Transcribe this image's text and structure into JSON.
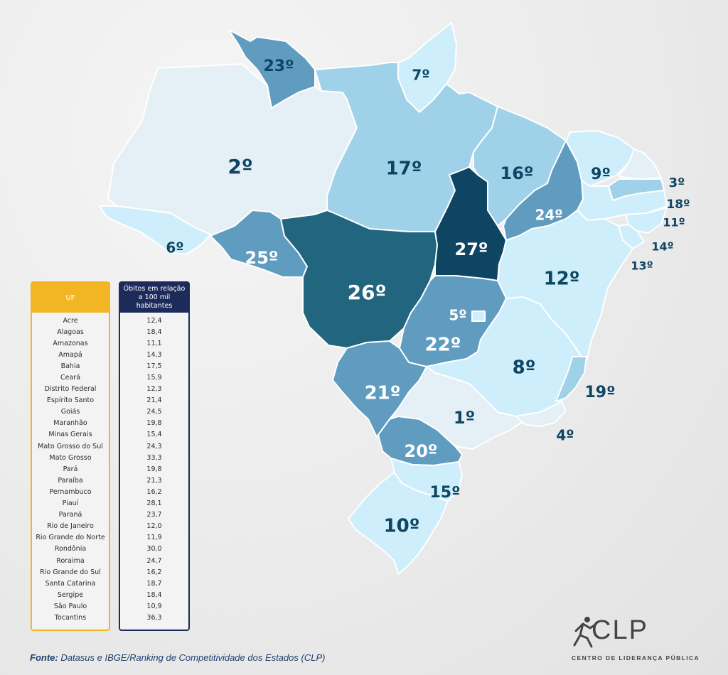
{
  "colors": {
    "very_light": "#e5eff6",
    "pale": "#cdeefa",
    "light": "#9fd1e8",
    "medium": "#5f9cc0",
    "dark": "#21657f",
    "darkest": "#0d4563",
    "label_dark": "#0d4563",
    "label_light": "#ffffff",
    "uf_header": "#f2b625",
    "value_header": "#1d2b5a"
  },
  "map": {
    "ranks": {
      "RR": "23º",
      "AP": "7º",
      "AM": "2º",
      "PA": "17º",
      "MA": "16º",
      "CE": "9º",
      "RN": "3º",
      "PB": "18º",
      "PE": "11º",
      "AL": "14º",
      "SE": "13º",
      "PI": "24º",
      "AC": "6º",
      "RO": "25º",
      "MT": "26º",
      "TO": "27º",
      "BA": "12º",
      "DF": "5º",
      "GO": "22º",
      "MG": "8º",
      "ES": "19º",
      "MS": "21º",
      "SP": "1º",
      "RJ": "4º",
      "PR": "20º",
      "SC": "15º",
      "RS": "10º"
    }
  },
  "table": {
    "uf_header": "UF",
    "value_header": "Óbitos em relação a 100 mil habitantes",
    "rows": [
      {
        "uf": "Acre",
        "value": "12,4"
      },
      {
        "uf": "Alagoas",
        "value": "18,4"
      },
      {
        "uf": "Amazonas",
        "value": "11,1"
      },
      {
        "uf": "Amapá",
        "value": "14,3"
      },
      {
        "uf": "Bahia",
        "value": "17,5"
      },
      {
        "uf": "Ceará",
        "value": "15,9"
      },
      {
        "uf": "Distrito Federal",
        "value": "12,3"
      },
      {
        "uf": "Espírito Santo",
        "value": "21,4"
      },
      {
        "uf": "Goiás",
        "value": "24,5"
      },
      {
        "uf": "Maranhão",
        "value": "19,8"
      },
      {
        "uf": "Minas Gerais",
        "value": "15,4"
      },
      {
        "uf": "Mato Grosso do Sul",
        "value": "24,3"
      },
      {
        "uf": "Mato Grosso",
        "value": "33,3"
      },
      {
        "uf": "Pará",
        "value": "19,8"
      },
      {
        "uf": "Paraíba",
        "value": "21,3"
      },
      {
        "uf": "Pernambuco",
        "value": "16,2"
      },
      {
        "uf": "Piauí",
        "value": "28,1"
      },
      {
        "uf": "Paraná",
        "value": "23,7"
      },
      {
        "uf": "Rio de Janeiro",
        "value": "12,0"
      },
      {
        "uf": "Rio Grande do Norte",
        "value": "11,9"
      },
      {
        "uf": "Rondônia",
        "value": "30,0"
      },
      {
        "uf": "Roraima",
        "value": "24,7"
      },
      {
        "uf": "Rio Grande do Sul",
        "value": "16,2"
      },
      {
        "uf": "Santa Catarina",
        "value": "18,7"
      },
      {
        "uf": "Sergipe",
        "value": "18,4"
      },
      {
        "uf": "São Paulo",
        "value": "10,9"
      },
      {
        "uf": "Tocantins",
        "value": "36,3"
      }
    ]
  },
  "footer": {
    "label": "Fonte:",
    "text": "Datasus e IBGE/Ranking de Competitividade dos Estados (CLP)"
  },
  "logo": {
    "letters": "CLP",
    "subtitle": "CENTRO DE LIDERANÇA PÚBLICA"
  }
}
